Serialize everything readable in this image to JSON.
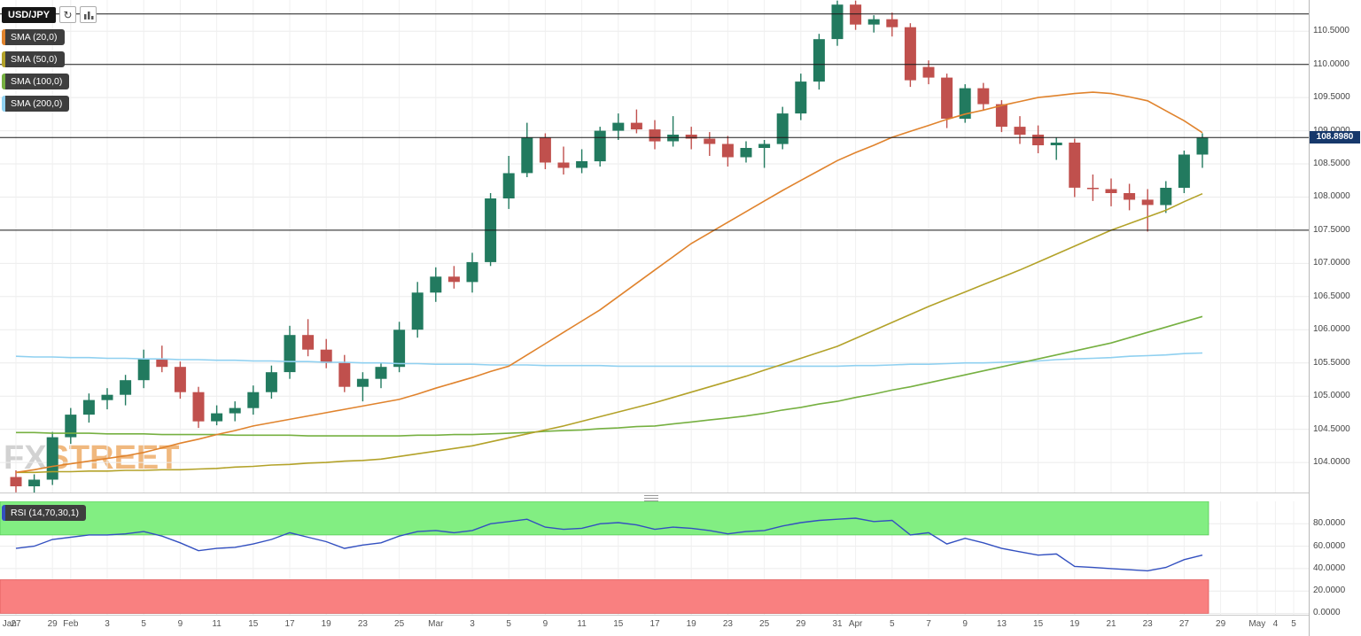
{
  "toolbar": {
    "symbol": "USD/JPY",
    "refresh_icon": "↻"
  },
  "legend": [
    {
      "label": "SMA (20,0)",
      "color": "#e0832d"
    },
    {
      "label": "SMA (50,0)",
      "color": "#b3a229"
    },
    {
      "label": "SMA (100,0)",
      "color": "#76b041"
    },
    {
      "label": "SMA (200,0)",
      "color": "#8fd0f0"
    }
  ],
  "rsi_label": {
    "label": "RSI (14,70,30,1)",
    "color": "#3350c0"
  },
  "watermark": {
    "part1": "FX",
    "part2": "STREET"
  },
  "price_badge": {
    "text": "108.8980",
    "color": "#16386b"
  },
  "colors": {
    "up": "#227a5f",
    "down": "#c0504d",
    "sma20": "#e0832d",
    "sma50": "#b3a229",
    "sma100": "#76b041",
    "sma200": "#8fd0f0",
    "rsi_line": "#3350c0",
    "overbought_fill": "#82ee82",
    "oversold_fill": "#f98080",
    "ref_line": "#1a1a1a",
    "grid_h": "#ebebeb",
    "grid_v": "#f0f0f0"
  },
  "chart_data": {
    "type": "candlestick",
    "symbol": "USD/JPY",
    "current_price": 108.898,
    "main": {
      "ylim": [
        103.5,
        111.0
      ],
      "y_ticks": [
        110.5,
        110.0,
        109.5,
        109.0,
        108.5,
        108.0,
        107.5,
        107.0,
        106.5,
        106.0,
        105.5,
        105.0,
        104.5,
        104.0
      ],
      "y_tick_labels": [
        "110.5000",
        "110.0000",
        "109.5000",
        "109.0000",
        "108.5000",
        "108.0000",
        "107.5000",
        "107.0000",
        "106.5000",
        "106.0000",
        "105.5000",
        "105.0000",
        "104.5000",
        "104.0000"
      ],
      "ref_lines": [
        110.76,
        110.0,
        108.898,
        107.5
      ],
      "candles": [
        {
          "d": "Jan 27",
          "o": 103.78,
          "h": 103.88,
          "l": 103.55,
          "c": 103.64
        },
        {
          "d": "Jan 28",
          "o": 103.64,
          "h": 103.82,
          "l": 103.52,
          "c": 103.74
        },
        {
          "d": "Jan 29",
          "o": 103.74,
          "h": 104.46,
          "l": 103.66,
          "c": 104.38
        },
        {
          "d": "Feb 1",
          "o": 104.38,
          "h": 104.82,
          "l": 104.28,
          "c": 104.72
        },
        {
          "d": "Feb 2",
          "o": 104.72,
          "h": 105.04,
          "l": 104.6,
          "c": 104.94
        },
        {
          "d": "Feb 3",
          "o": 104.94,
          "h": 105.12,
          "l": 104.8,
          "c": 105.02
        },
        {
          "d": "Feb 4",
          "o": 105.02,
          "h": 105.32,
          "l": 104.86,
          "c": 105.24
        },
        {
          "d": "Feb 5",
          "o": 105.24,
          "h": 105.7,
          "l": 105.12,
          "c": 105.56
        },
        {
          "d": "Feb 8",
          "o": 105.56,
          "h": 105.76,
          "l": 105.36,
          "c": 105.44
        },
        {
          "d": "Feb 9",
          "o": 105.44,
          "h": 105.52,
          "l": 104.96,
          "c": 105.06
        },
        {
          "d": "Feb 10",
          "o": 105.06,
          "h": 105.14,
          "l": 104.52,
          "c": 104.62
        },
        {
          "d": "Feb 11",
          "o": 104.62,
          "h": 104.86,
          "l": 104.56,
          "c": 104.74
        },
        {
          "d": "Feb 12",
          "o": 104.74,
          "h": 104.92,
          "l": 104.62,
          "c": 104.82
        },
        {
          "d": "Feb 15",
          "o": 104.82,
          "h": 105.16,
          "l": 104.72,
          "c": 105.06
        },
        {
          "d": "Feb 16",
          "o": 105.06,
          "h": 105.46,
          "l": 104.96,
          "c": 105.36
        },
        {
          "d": "Feb 17",
          "o": 105.36,
          "h": 106.06,
          "l": 105.26,
          "c": 105.92
        },
        {
          "d": "Feb 18",
          "o": 105.92,
          "h": 106.16,
          "l": 105.6,
          "c": 105.7
        },
        {
          "d": "Feb 19",
          "o": 105.7,
          "h": 105.86,
          "l": 105.42,
          "c": 105.5
        },
        {
          "d": "Feb 22",
          "o": 105.5,
          "h": 105.62,
          "l": 105.06,
          "c": 105.14
        },
        {
          "d": "Feb 23",
          "o": 105.14,
          "h": 105.36,
          "l": 104.92,
          "c": 105.26
        },
        {
          "d": "Feb 24",
          "o": 105.26,
          "h": 105.5,
          "l": 105.12,
          "c": 105.44
        },
        {
          "d": "Feb 25",
          "o": 105.44,
          "h": 106.12,
          "l": 105.36,
          "c": 106.0
        },
        {
          "d": "Feb 26",
          "o": 106.0,
          "h": 106.72,
          "l": 105.88,
          "c": 106.56
        },
        {
          "d": "Mar 1",
          "o": 106.56,
          "h": 106.94,
          "l": 106.42,
          "c": 106.8
        },
        {
          "d": "Mar 2",
          "o": 106.8,
          "h": 106.96,
          "l": 106.62,
          "c": 106.72
        },
        {
          "d": "Mar 3",
          "o": 106.72,
          "h": 107.16,
          "l": 106.56,
          "c": 107.02
        },
        {
          "d": "Mar 4",
          "o": 107.02,
          "h": 108.06,
          "l": 106.96,
          "c": 107.98
        },
        {
          "d": "Mar 5",
          "o": 107.98,
          "h": 108.62,
          "l": 107.82,
          "c": 108.36
        },
        {
          "d": "Mar 8",
          "o": 108.36,
          "h": 109.12,
          "l": 108.3,
          "c": 108.9
        },
        {
          "d": "Mar 9",
          "o": 108.9,
          "h": 108.96,
          "l": 108.42,
          "c": 108.52
        },
        {
          "d": "Mar 10",
          "o": 108.52,
          "h": 108.76,
          "l": 108.34,
          "c": 108.44
        },
        {
          "d": "Mar 11",
          "o": 108.44,
          "h": 108.72,
          "l": 108.36,
          "c": 108.54
        },
        {
          "d": "Mar 12",
          "o": 108.54,
          "h": 109.06,
          "l": 108.46,
          "c": 109.0
        },
        {
          "d": "Mar 15",
          "o": 109.0,
          "h": 109.26,
          "l": 108.86,
          "c": 109.12
        },
        {
          "d": "Mar 16",
          "o": 109.12,
          "h": 109.32,
          "l": 108.96,
          "c": 109.02
        },
        {
          "d": "Mar 17",
          "o": 109.02,
          "h": 109.16,
          "l": 108.72,
          "c": 108.84
        },
        {
          "d": "Mar 18",
          "o": 108.84,
          "h": 109.22,
          "l": 108.76,
          "c": 108.94
        },
        {
          "d": "Mar 19",
          "o": 108.94,
          "h": 109.06,
          "l": 108.72,
          "c": 108.88
        },
        {
          "d": "Mar 22",
          "o": 108.88,
          "h": 108.98,
          "l": 108.62,
          "c": 108.8
        },
        {
          "d": "Mar 23",
          "o": 108.8,
          "h": 108.92,
          "l": 108.46,
          "c": 108.6
        },
        {
          "d": "Mar 24",
          "o": 108.6,
          "h": 108.84,
          "l": 108.52,
          "c": 108.74
        },
        {
          "d": "Mar 25",
          "o": 108.74,
          "h": 108.86,
          "l": 108.44,
          "c": 108.8
        },
        {
          "d": "Mar 26",
          "o": 108.8,
          "h": 109.36,
          "l": 108.72,
          "c": 109.26
        },
        {
          "d": "Mar 29",
          "o": 109.26,
          "h": 109.86,
          "l": 109.16,
          "c": 109.74
        },
        {
          "d": "Mar 30",
          "o": 109.74,
          "h": 110.46,
          "l": 109.62,
          "c": 110.38
        },
        {
          "d": "Mar 31",
          "o": 110.38,
          "h": 110.96,
          "l": 110.28,
          "c": 110.9
        },
        {
          "d": "Apr 1",
          "o": 110.9,
          "h": 110.96,
          "l": 110.52,
          "c": 110.6
        },
        {
          "d": "Apr 2",
          "o": 110.6,
          "h": 110.74,
          "l": 110.48,
          "c": 110.68
        },
        {
          "d": "Apr 5",
          "o": 110.68,
          "h": 110.78,
          "l": 110.42,
          "c": 110.56
        },
        {
          "d": "Apr 6",
          "o": 110.56,
          "h": 110.62,
          "l": 109.66,
          "c": 109.76
        },
        {
          "d": "Apr 7",
          "o": 109.96,
          "h": 110.06,
          "l": 109.7,
          "c": 109.8
        },
        {
          "d": "Apr 8",
          "o": 109.8,
          "h": 109.86,
          "l": 109.04,
          "c": 109.18
        },
        {
          "d": "Apr 9",
          "o": 109.18,
          "h": 109.7,
          "l": 109.12,
          "c": 109.64
        },
        {
          "d": "Apr 12",
          "o": 109.64,
          "h": 109.72,
          "l": 109.3,
          "c": 109.4
        },
        {
          "d": "Apr 13",
          "o": 109.4,
          "h": 109.46,
          "l": 108.98,
          "c": 109.06
        },
        {
          "d": "Apr 14",
          "o": 109.06,
          "h": 109.22,
          "l": 108.8,
          "c": 108.94
        },
        {
          "d": "Apr 15",
          "o": 108.94,
          "h": 109.08,
          "l": 108.66,
          "c": 108.78
        },
        {
          "d": "Apr 16",
          "o": 108.78,
          "h": 108.9,
          "l": 108.56,
          "c": 108.82
        },
        {
          "d": "Apr 19",
          "o": 108.82,
          "h": 108.88,
          "l": 108.0,
          "c": 108.14
        },
        {
          "d": "Apr 20",
          "o": 108.14,
          "h": 108.34,
          "l": 107.94,
          "c": 108.12
        },
        {
          "d": "Apr 21",
          "o": 108.12,
          "h": 108.28,
          "l": 107.86,
          "c": 108.06
        },
        {
          "d": "Apr 22",
          "o": 108.06,
          "h": 108.2,
          "l": 107.8,
          "c": 107.96
        },
        {
          "d": "Apr 23",
          "o": 107.96,
          "h": 108.12,
          "l": 107.48,
          "c": 107.88
        },
        {
          "d": "Apr 26",
          "o": 107.88,
          "h": 108.24,
          "l": 107.76,
          "c": 108.14
        },
        {
          "d": "Apr 27",
          "o": 108.14,
          "h": 108.7,
          "l": 108.06,
          "c": 108.64
        },
        {
          "d": "Apr 28",
          "o": 108.64,
          "h": 108.96,
          "l": 108.44,
          "c": 108.9
        }
      ],
      "sma20": [
        103.85,
        103.89,
        103.94,
        103.98,
        104.02,
        104.06,
        104.1,
        104.15,
        104.22,
        104.29,
        104.35,
        104.42,
        104.48,
        104.55,
        104.6,
        104.65,
        104.7,
        104.75,
        104.8,
        104.85,
        104.9,
        104.95,
        105.03,
        105.12,
        105.2,
        105.28,
        105.37,
        105.45,
        105.62,
        105.79,
        105.96,
        106.13,
        106.3,
        106.5,
        106.7,
        106.9,
        107.1,
        107.3,
        107.46,
        107.62,
        107.78,
        107.94,
        108.1,
        108.25,
        108.4,
        108.55,
        108.67,
        108.78,
        108.9,
        108.99,
        109.08,
        109.17,
        109.25,
        109.31,
        109.38,
        109.44,
        109.5,
        109.53,
        109.56,
        109.58,
        109.56,
        109.51,
        109.45,
        109.3,
        109.15,
        108.97
      ],
      "sma50": [
        103.85,
        103.85,
        103.86,
        103.86,
        103.87,
        103.87,
        103.88,
        103.88,
        103.89,
        103.89,
        103.9,
        103.91,
        103.93,
        103.94,
        103.96,
        103.97,
        103.99,
        104.0,
        104.02,
        104.03,
        104.05,
        104.09,
        104.13,
        104.17,
        104.21,
        104.25,
        104.31,
        104.37,
        104.43,
        104.49,
        104.55,
        104.62,
        104.69,
        104.76,
        104.83,
        104.9,
        104.98,
        105.06,
        105.14,
        105.22,
        105.3,
        105.39,
        105.48,
        105.57,
        105.66,
        105.75,
        105.87,
        105.99,
        106.11,
        106.23,
        106.35,
        106.46,
        106.57,
        106.68,
        106.79,
        106.9,
        107.02,
        107.14,
        107.26,
        107.38,
        107.5,
        107.6,
        107.7,
        107.8,
        107.93,
        108.05
      ],
      "sma100": [
        104.45,
        104.45,
        104.44,
        104.44,
        104.44,
        104.43,
        104.43,
        104.43,
        104.42,
        104.42,
        104.42,
        104.42,
        104.41,
        104.41,
        104.41,
        104.41,
        104.4,
        104.4,
        104.4,
        104.4,
        104.4,
        104.4,
        104.41,
        104.41,
        104.42,
        104.42,
        104.43,
        104.44,
        104.45,
        104.47,
        104.48,
        104.49,
        104.51,
        104.52,
        104.54,
        104.55,
        104.58,
        104.61,
        104.64,
        104.67,
        104.7,
        104.74,
        104.79,
        104.83,
        104.88,
        104.92,
        104.98,
        105.03,
        105.09,
        105.14,
        105.2,
        105.26,
        105.32,
        105.38,
        105.44,
        105.5,
        105.56,
        105.62,
        105.68,
        105.74,
        105.8,
        105.88,
        105.96,
        106.04,
        106.12,
        106.2
      ],
      "sma200": [
        105.6,
        105.59,
        105.59,
        105.58,
        105.58,
        105.57,
        105.57,
        105.56,
        105.56,
        105.55,
        105.55,
        105.54,
        105.54,
        105.53,
        105.53,
        105.52,
        105.52,
        105.51,
        105.51,
        105.5,
        105.5,
        105.49,
        105.49,
        105.48,
        105.48,
        105.48,
        105.47,
        105.47,
        105.47,
        105.46,
        105.46,
        105.46,
        105.46,
        105.45,
        105.45,
        105.45,
        105.45,
        105.45,
        105.45,
        105.45,
        105.45,
        105.45,
        105.45,
        105.45,
        105.45,
        105.45,
        105.46,
        105.46,
        105.47,
        105.48,
        105.48,
        105.49,
        105.5,
        105.5,
        105.51,
        105.52,
        105.53,
        105.55,
        105.56,
        105.57,
        105.58,
        105.6,
        105.61,
        105.62,
        105.64,
        105.65
      ]
    },
    "rsi": {
      "params": "14,70,30,1",
      "ylim": [
        0,
        100
      ],
      "y_ticks": [
        80,
        60,
        40,
        20,
        0
      ],
      "y_tick_labels": [
        "80.0000",
        "60.0000",
        "40.0000",
        "20.0000",
        "0.0000"
      ],
      "overbought_band": [
        70,
        100
      ],
      "oversold_band": [
        0,
        30
      ],
      "values": [
        58,
        60,
        66,
        68,
        70,
        70,
        71,
        73,
        69,
        63,
        56,
        58,
        59,
        62,
        66,
        72,
        68,
        64,
        58,
        61,
        63,
        69,
        73,
        74,
        72,
        74,
        80,
        82,
        84,
        77,
        75,
        76,
        80,
        81,
        79,
        75,
        77,
        76,
        74,
        71,
        73,
        74,
        78,
        81,
        83,
        84,
        85,
        82,
        83,
        70,
        72,
        62,
        67,
        63,
        58,
        55,
        52,
        53,
        42,
        41,
        40,
        39,
        38,
        41,
        48,
        52
      ]
    },
    "x_ticks": [
      {
        "i": -0.35,
        "label": "Jan"
      },
      {
        "i": 0,
        "label": "27"
      },
      {
        "i": 2,
        "label": "29"
      },
      {
        "i": 3,
        "label": "Feb"
      },
      {
        "i": 5,
        "label": "3"
      },
      {
        "i": 7,
        "label": "5"
      },
      {
        "i": 9,
        "label": "9"
      },
      {
        "i": 11,
        "label": "11"
      },
      {
        "i": 13,
        "label": "15"
      },
      {
        "i": 15,
        "label": "17"
      },
      {
        "i": 17,
        "label": "19"
      },
      {
        "i": 19,
        "label": "23"
      },
      {
        "i": 21,
        "label": "25"
      },
      {
        "i": 23,
        "label": "Mar"
      },
      {
        "i": 25,
        "label": "3"
      },
      {
        "i": 27,
        "label": "5"
      },
      {
        "i": 29,
        "label": "9"
      },
      {
        "i": 31,
        "label": "11"
      },
      {
        "i": 33,
        "label": "15"
      },
      {
        "i": 35,
        "label": "17"
      },
      {
        "i": 37,
        "label": "19"
      },
      {
        "i": 39,
        "label": "23"
      },
      {
        "i": 41,
        "label": "25"
      },
      {
        "i": 43,
        "label": "29"
      },
      {
        "i": 45,
        "label": "31"
      },
      {
        "i": 46,
        "label": "Apr"
      },
      {
        "i": 48,
        "label": "5"
      },
      {
        "i": 50,
        "label": "7"
      },
      {
        "i": 52,
        "label": "9"
      },
      {
        "i": 54,
        "label": "13"
      },
      {
        "i": 56,
        "label": "15"
      },
      {
        "i": 58,
        "label": "19"
      },
      {
        "i": 60,
        "label": "21"
      },
      {
        "i": 62,
        "label": "23"
      },
      {
        "i": 64,
        "label": "27"
      },
      {
        "i": 66,
        "label": "29"
      },
      {
        "i": 68,
        "label": "May"
      },
      {
        "i": 69,
        "label": "4"
      },
      {
        "i": 70,
        "label": "5"
      }
    ]
  }
}
